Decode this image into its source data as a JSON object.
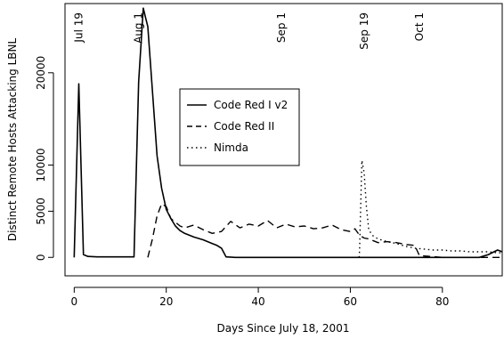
{
  "chart_data": {
    "type": "line",
    "title": "",
    "xlabel": "Days Since July 18, 2001",
    "ylabel": "Distinct Remote Hosts Attacking LBNL",
    "xlim": [
      -2,
      93
    ],
    "ylim": [
      -2000,
      27500
    ],
    "xticks": [
      0,
      20,
      40,
      60,
      80
    ],
    "yticks": [
      0,
      5000,
      10000,
      20000
    ],
    "grid": false,
    "legend_position": "center",
    "annotations": [
      {
        "label": "Jul 19",
        "x": 1
      },
      {
        "label": "Aug 1",
        "x": 14
      },
      {
        "label": "Sep 1",
        "x": 45
      },
      {
        "label": "Sep 19",
        "x": 63
      },
      {
        "label": "Oct 1",
        "x": 75
      }
    ],
    "series": [
      {
        "name": "Code Red I v2",
        "linestyle": "solid",
        "x": [
          0,
          1,
          2,
          3,
          5,
          8,
          10,
          12,
          13,
          14,
          15,
          15.5,
          16,
          17,
          18,
          19,
          20,
          21,
          22,
          23,
          24,
          26,
          28,
          30,
          31,
          32,
          33,
          35,
          40,
          50,
          60,
          70,
          80,
          85,
          88,
          90,
          92,
          93
        ],
        "y": [
          0,
          18800,
          300,
          100,
          50,
          50,
          50,
          50,
          50,
          19000,
          27000,
          26000,
          25000,
          18000,
          11000,
          7500,
          5200,
          4200,
          3400,
          2900,
          2600,
          2200,
          1900,
          1500,
          1300,
          1000,
          50,
          0,
          0,
          0,
          0,
          0,
          0,
          0,
          0,
          300,
          800,
          600
        ]
      },
      {
        "name": "Code Red II",
        "linestyle": "dashed",
        "x": [
          16,
          17,
          18,
          19,
          20,
          21,
          22,
          23,
          24,
          26,
          28,
          30,
          32,
          34,
          36,
          38,
          40,
          42,
          44,
          46,
          48,
          50,
          52,
          54,
          56,
          58,
          60,
          61,
          62,
          63,
          64,
          66,
          68,
          70,
          72,
          74,
          75,
          80,
          85,
          90,
          93
        ],
        "y": [
          0,
          2000,
          4500,
          5800,
          5500,
          4200,
          3800,
          3400,
          3200,
          3500,
          3000,
          2600,
          2800,
          3900,
          3200,
          3600,
          3400,
          4000,
          3200,
          3600,
          3300,
          3400,
          3100,
          3200,
          3500,
          3000,
          2800,
          3100,
          2400,
          2100,
          2000,
          1600,
          1700,
          1600,
          1400,
          1300,
          200,
          0,
          0,
          0,
          0
        ]
      },
      {
        "name": "Nimda",
        "linestyle": "dotted",
        "x": [
          61.9,
          62,
          62.5,
          63,
          63.5,
          64,
          64.5,
          65,
          66,
          68,
          70,
          72,
          74,
          76,
          78,
          80,
          82,
          84,
          86,
          88,
          90,
          92,
          93
        ],
        "y": [
          0,
          800,
          10500,
          9200,
          5500,
          3000,
          2600,
          2300,
          2000,
          1700,
          1500,
          1200,
          1000,
          900,
          800,
          800,
          700,
          700,
          600,
          600,
          600,
          500,
          500
        ]
      }
    ]
  }
}
